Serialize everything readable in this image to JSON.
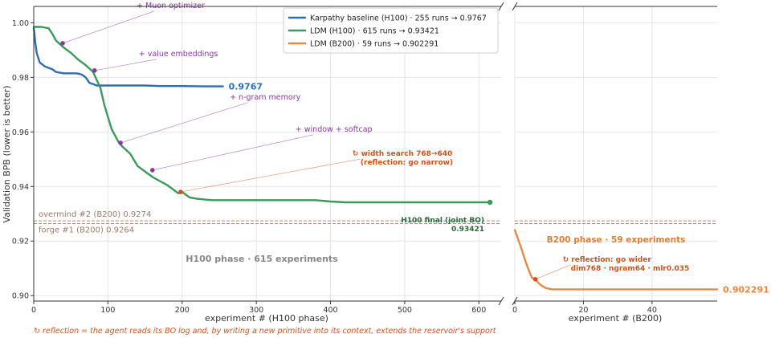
{
  "chart_data": {
    "type": "line",
    "ylabel": "Validation BPB  (lower is better)",
    "ylim": [
      0.898,
      1.006
    ],
    "yticks": [
      "0.90",
      "0.92",
      "0.94",
      "0.96",
      "0.98",
      "1.00"
    ],
    "ytick_values": [
      0.9,
      0.92,
      0.94,
      0.96,
      0.98,
      1.0
    ],
    "grid": true,
    "legend_position": "top-right",
    "panels": [
      {
        "id": "h100",
        "xlabel": "experiment #   (H100 phase)",
        "xlim": [
          0,
          630
        ],
        "xticks": [
          "0",
          "100",
          "200",
          "300",
          "400",
          "500",
          "600"
        ],
        "xtick_values": [
          0,
          100,
          200,
          300,
          400,
          500,
          600
        ],
        "phase_label": "H100 phase  ·  615 experiments"
      },
      {
        "id": "b200",
        "xlabel": "experiment #   (B200)",
        "xlim": [
          0,
          59
        ],
        "xticks": [
          "0",
          "20",
          "40"
        ],
        "xtick_values": [
          0,
          20,
          40
        ],
        "phase_label": "B200 phase  ·  59 experiments"
      }
    ],
    "series": [
      {
        "name": "Karpathy baseline (H100)  ·  255 runs  →  0.9767",
        "color": "#2f6db5",
        "panel": "h100",
        "end_label": "0.9767",
        "x": [
          0,
          1,
          2,
          4,
          8,
          15,
          20,
          25,
          30,
          40,
          50,
          55,
          60,
          65,
          70,
          75,
          80,
          85,
          90,
          100,
          110,
          150,
          170,
          200,
          230,
          255
        ],
        "y": [
          0.998,
          0.996,
          0.993,
          0.989,
          0.9855,
          0.984,
          0.9835,
          0.983,
          0.982,
          0.9815,
          0.9815,
          0.9815,
          0.9814,
          0.981,
          0.98,
          0.978,
          0.9775,
          0.977,
          0.977,
          0.977,
          0.977,
          0.977,
          0.9768,
          0.9768,
          0.9767,
          0.9767
        ]
      },
      {
        "name": "LDM (H100)  ·  615 runs  →  0.93421",
        "color": "#3a9a5c",
        "panel": "h100",
        "x": [
          0,
          10,
          20,
          25,
          30,
          40,
          50,
          60,
          70,
          80,
          90,
          95,
          100,
          105,
          110,
          115,
          120,
          130,
          140,
          150,
          160,
          170,
          180,
          185,
          190,
          195,
          200,
          205,
          210,
          220,
          240,
          280,
          320,
          360,
          380,
          400,
          420,
          450,
          500,
          550,
          600,
          615
        ],
        "y": [
          0.9985,
          0.9985,
          0.998,
          0.996,
          0.9935,
          0.991,
          0.989,
          0.9865,
          0.9845,
          0.982,
          0.976,
          0.97,
          0.9655,
          0.961,
          0.9585,
          0.956,
          0.9545,
          0.952,
          0.9475,
          0.9455,
          0.9435,
          0.942,
          0.9405,
          0.9395,
          0.9385,
          0.9375,
          0.938,
          0.937,
          0.936,
          0.9355,
          0.935,
          0.935,
          0.935,
          0.935,
          0.935,
          0.9345,
          0.9342,
          0.9342,
          0.9342,
          0.9342,
          0.9342,
          0.93421
        ]
      },
      {
        "name": "LDM (B200)  ·  59 runs  →  0.902291",
        "color": "#e58a45",
        "panel": "b200",
        "end_label": "0.902291",
        "x": [
          0,
          1,
          2,
          3,
          4,
          5,
          6,
          7,
          8,
          9,
          10,
          11,
          12,
          13,
          14,
          15,
          20,
          30,
          40,
          50,
          59
        ],
        "y": [
          0.924,
          0.9205,
          0.917,
          0.913,
          0.9095,
          0.9065,
          0.906,
          0.9045,
          0.9035,
          0.9028,
          0.9025,
          0.9023,
          0.9023,
          0.9023,
          0.9023,
          0.9023,
          0.9023,
          0.9023,
          0.9023,
          0.9023,
          0.902291
        ]
      }
    ],
    "reference_lines": [
      {
        "label": "overmind #2 (B200)  0.9274",
        "value": 0.9274,
        "color": "#b08a7a"
      },
      {
        "label": "forge #1 (B200)  0.9264",
        "value": 0.9264,
        "color": "#b08a7a"
      }
    ],
    "annotations": [
      {
        "text": "+ Muon optimizer",
        "panel": "h100",
        "point": [
          39,
          0.9925
        ],
        "color": "#8a3a9e"
      },
      {
        "text": "+ value embeddings",
        "panel": "h100",
        "point": [
          82,
          0.9825
        ],
        "color": "#8a3a9e"
      },
      {
        "text": "+ n-gram memory",
        "panel": "h100",
        "point": [
          117,
          0.956
        ],
        "color": "#8a3a9e"
      },
      {
        "text": "+ window + softcap",
        "panel": "h100",
        "point": [
          160,
          0.946
        ],
        "color": "#8a3a9e"
      },
      {
        "text": "↻ width search 768→640",
        "text2": "(reflection: go narrow)",
        "panel": "h100",
        "point": [
          198,
          0.938
        ],
        "color": "#c8541f"
      },
      {
        "text": "↻ reflection: go wider",
        "text2": "dim768 · ngram64 · mlr0.035",
        "panel": "b200",
        "point": [
          6,
          0.906
        ],
        "color": "#c8541f"
      }
    ],
    "final_label": {
      "text": "H100 final (joint BO)",
      "value_text": "0.93421",
      "point": [
        615,
        0.93421
      ],
      "color": "#2a6a3a"
    },
    "footnote": "↻ reflection = the agent reads its BO log and, by writing a new primitive into its context, extends the reservoir's support"
  }
}
